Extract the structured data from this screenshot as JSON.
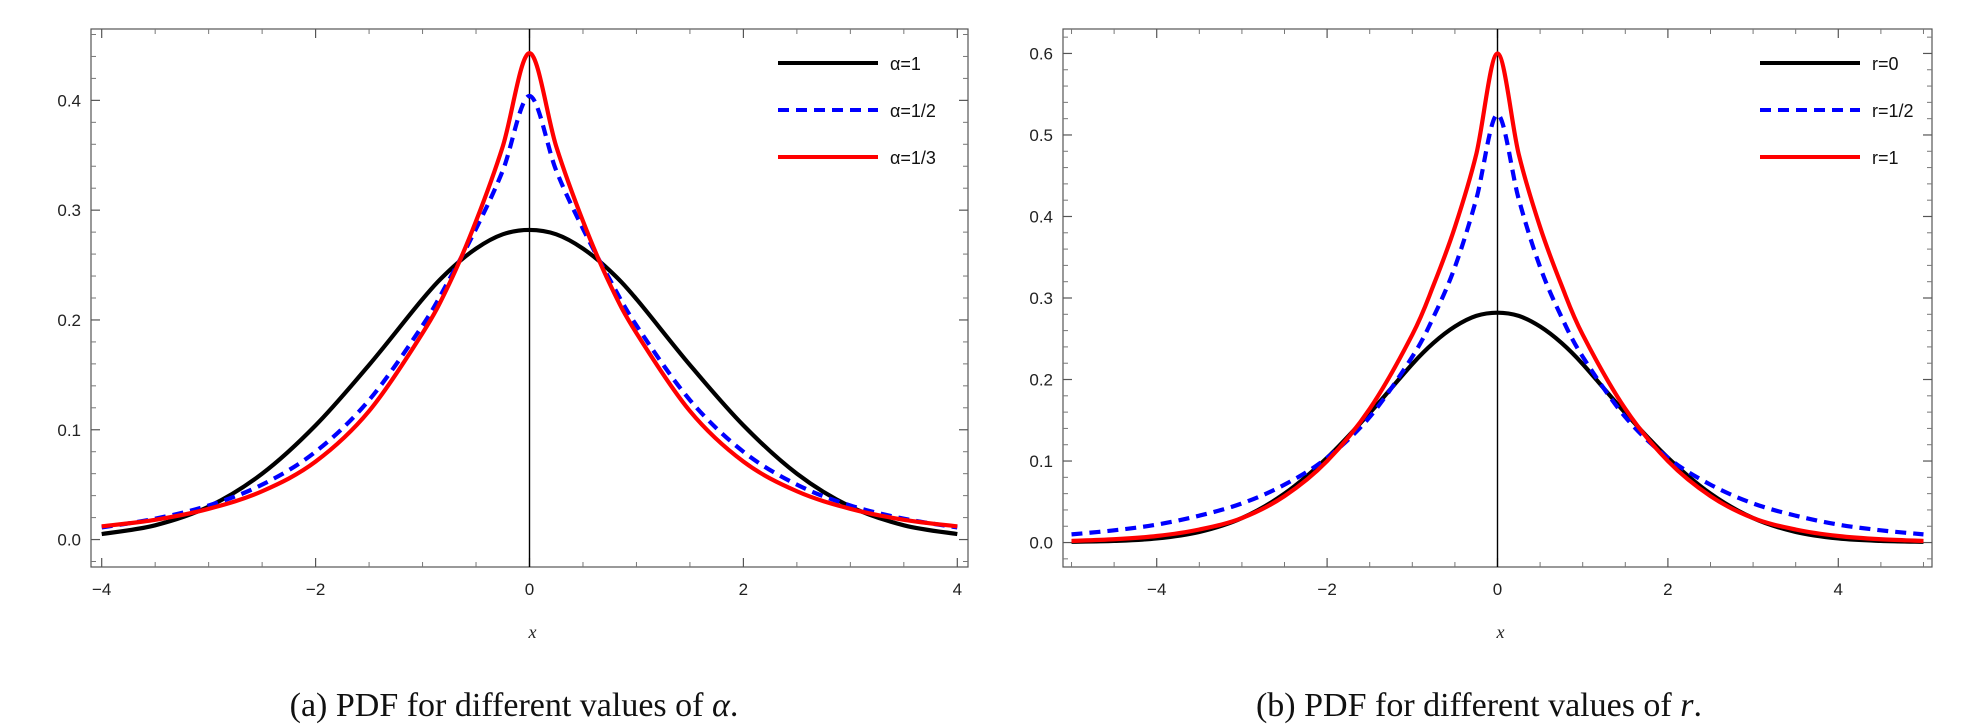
{
  "chart_data": [
    {
      "type": "line",
      "caption_prefix": "(a) PDF for different values of ",
      "caption_symbol": "α",
      "caption_suffix": ".",
      "xlabel": "x",
      "ylabel": "",
      "xlim": [
        -4.1,
        4.1
      ],
      "ylim": [
        -0.025,
        0.465
      ],
      "xticks": [
        -4,
        -2,
        0,
        2,
        4
      ],
      "xtick_labels": [
        "−4",
        "−2",
        "0",
        "2",
        "4"
      ],
      "yticks": [
        0.0,
        0.1,
        0.2,
        0.3,
        0.4
      ],
      "ytick_labels": [
        "0.0",
        "0.1",
        "0.2",
        "0.3",
        "0.4"
      ],
      "legend_position": "top-right",
      "grid": false,
      "series": [
        {
          "name": "α=1",
          "color": "#000000",
          "dash": "solid",
          "x": [
            -4,
            -3.5,
            -3,
            -2.5,
            -2,
            -1.5,
            -1,
            -0.75,
            -0.5,
            -0.25,
            0,
            0.25,
            0.5,
            0.75,
            1,
            1.5,
            2,
            2.5,
            3,
            3.5,
            4
          ],
          "y": [
            0.005,
            0.013,
            0.03,
            0.06,
            0.104,
            0.159,
            0.219,
            0.245,
            0.265,
            0.278,
            0.282,
            0.278,
            0.265,
            0.245,
            0.219,
            0.159,
            0.104,
            0.06,
            0.03,
            0.013,
            0.005
          ]
        },
        {
          "name": "α=1/2",
          "color": "#0000ff",
          "dash": "dashed",
          "x": [
            -4,
            -3.5,
            -3,
            -2.5,
            -2,
            -1.5,
            -1,
            -0.75,
            -0.5,
            -0.25,
            0,
            0.25,
            0.5,
            0.75,
            1,
            1.5,
            2,
            2.5,
            3,
            3.5,
            4
          ],
          "y": [
            0.011,
            0.019,
            0.031,
            0.05,
            0.08,
            0.127,
            0.195,
            0.237,
            0.283,
            0.336,
            0.404,
            0.336,
            0.283,
            0.237,
            0.195,
            0.127,
            0.08,
            0.05,
            0.031,
            0.019,
            0.011
          ]
        },
        {
          "name": "α=1/3",
          "color": "#ff0000",
          "dash": "solid",
          "x": [
            -4,
            -3.5,
            -3,
            -2.5,
            -2,
            -1.5,
            -1,
            -0.75,
            -0.5,
            -0.25,
            0,
            0.25,
            0.5,
            0.75,
            1,
            1.5,
            2,
            2.5,
            3,
            3.5,
            4
          ],
          "y": [
            0.012,
            0.018,
            0.028,
            0.044,
            0.071,
            0.117,
            0.188,
            0.233,
            0.29,
            0.358,
            0.443,
            0.358,
            0.29,
            0.233,
            0.188,
            0.117,
            0.071,
            0.044,
            0.028,
            0.018,
            0.012
          ]
        }
      ]
    },
    {
      "type": "line",
      "caption_prefix": "(b) PDF for different values of ",
      "caption_symbol": "r",
      "caption_suffix": ".",
      "xlabel": "x",
      "ylabel": "",
      "xlim": [
        -5.1,
        5.1
      ],
      "ylim": [
        -0.03,
        0.63
      ],
      "xticks": [
        -4,
        -2,
        0,
        2,
        4
      ],
      "xtick_labels": [
        "−4",
        "−2",
        "0",
        "2",
        "4"
      ],
      "yticks": [
        0.0,
        0.1,
        0.2,
        0.3,
        0.4,
        0.5,
        0.6
      ],
      "ytick_labels": [
        "0.0",
        "0.1",
        "0.2",
        "0.3",
        "0.4",
        "0.5",
        "0.6"
      ],
      "legend_position": "top-right",
      "grid": false,
      "series": [
        {
          "name": "r=0",
          "color": "#000000",
          "dash": "solid",
          "x": [
            -5,
            -4.5,
            -4,
            -3.5,
            -3,
            -2.5,
            -2,
            -1.5,
            -1,
            -0.75,
            -0.5,
            -0.25,
            0,
            0.25,
            0.5,
            0.75,
            1,
            1.5,
            2,
            2.5,
            3,
            3.5,
            4,
            4.5,
            5
          ],
          "y": [
            0.001,
            0.002,
            0.005,
            0.013,
            0.03,
            0.06,
            0.104,
            0.159,
            0.219,
            0.245,
            0.265,
            0.278,
            0.282,
            0.278,
            0.265,
            0.245,
            0.219,
            0.159,
            0.104,
            0.06,
            0.03,
            0.013,
            0.005,
            0.002,
            0.001
          ]
        },
        {
          "name": "r=1/2",
          "color": "#0000ff",
          "dash": "dashed",
          "x": [
            -5,
            -4.5,
            -4,
            -3.5,
            -3,
            -2.5,
            -2,
            -1.5,
            -1,
            -0.75,
            -0.5,
            -0.25,
            0,
            0.25,
            0.5,
            0.75,
            1,
            1.5,
            2,
            2.5,
            3,
            3.5,
            4,
            4.5,
            5
          ],
          "y": [
            0.01,
            0.015,
            0.022,
            0.033,
            0.048,
            0.071,
            0.104,
            0.154,
            0.228,
            0.277,
            0.338,
            0.421,
            0.525,
            0.421,
            0.338,
            0.277,
            0.228,
            0.154,
            0.104,
            0.071,
            0.048,
            0.033,
            0.022,
            0.015,
            0.01
          ]
        },
        {
          "name": "r=1",
          "color": "#ff0000",
          "dash": "solid",
          "x": [
            -5,
            -4.5,
            -4,
            -3.5,
            -3,
            -2.5,
            -2,
            -1.5,
            -1,
            -0.75,
            -0.5,
            -0.25,
            0,
            0.25,
            0.5,
            0.75,
            1,
            1.5,
            2,
            2.5,
            3,
            3.5,
            4,
            4.5,
            5
          ],
          "y": [
            0.002,
            0.004,
            0.008,
            0.016,
            0.03,
            0.057,
            0.1,
            0.164,
            0.255,
            0.316,
            0.387,
            0.476,
            0.6,
            0.476,
            0.387,
            0.316,
            0.255,
            0.164,
            0.1,
            0.057,
            0.03,
            0.016,
            0.008,
            0.004,
            0.002
          ]
        }
      ]
    }
  ]
}
